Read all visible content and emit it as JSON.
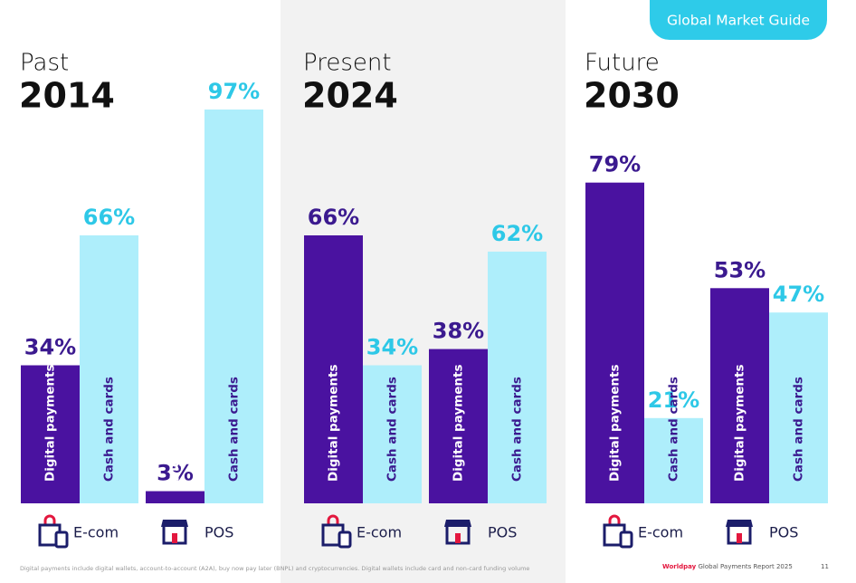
{
  "header": {
    "tag": "Global Market Guide"
  },
  "chart_data": [
    {
      "type": "bar",
      "subtitle": "Past",
      "title": "2014",
      "categories": [
        "E-com",
        "POS"
      ],
      "ylim": [
        0,
        100
      ],
      "series": [
        {
          "name": "Digital payments",
          "color": "#4a12a0",
          "values": [
            34,
            3
          ],
          "value_labels": [
            "34%",
            "3%"
          ]
        },
        {
          "name": "Cash and cards",
          "color": "#aeeefb",
          "values": [
            66,
            97
          ],
          "value_labels": [
            "66%",
            "97%"
          ]
        }
      ]
    },
    {
      "type": "bar",
      "subtitle": "Present",
      "title": "2024",
      "categories": [
        "E-com",
        "POS"
      ],
      "ylim": [
        0,
        100
      ],
      "series": [
        {
          "name": "Digital payments",
          "color": "#4a12a0",
          "values": [
            66,
            38
          ],
          "value_labels": [
            "66%",
            "38%"
          ]
        },
        {
          "name": "Cash and cards",
          "color": "#aeeefb",
          "values": [
            34,
            62
          ],
          "value_labels": [
            "34%",
            "62%"
          ]
        }
      ]
    },
    {
      "type": "bar",
      "subtitle": "Future",
      "title": "2030",
      "categories": [
        "E-com",
        "POS"
      ],
      "ylim": [
        0,
        100
      ],
      "series": [
        {
          "name": "Digital payments",
          "color": "#4a12a0",
          "values": [
            79,
            53
          ],
          "value_labels": [
            "79%",
            "53%"
          ]
        },
        {
          "name": "Cash and cards",
          "color": "#aeeefb",
          "values": [
            21,
            47
          ],
          "value_labels": [
            "21%",
            "47%"
          ]
        }
      ]
    }
  ],
  "footer": {
    "note": "Digital payments include digital wallets, account-to-account (A2A), buy now pay later (BNPL) and cryptocurrencies. Digital wallets include card and non-card funding volume",
    "brand": "Worldpay",
    "report": "Global Payments Report 2025",
    "page": "11"
  }
}
